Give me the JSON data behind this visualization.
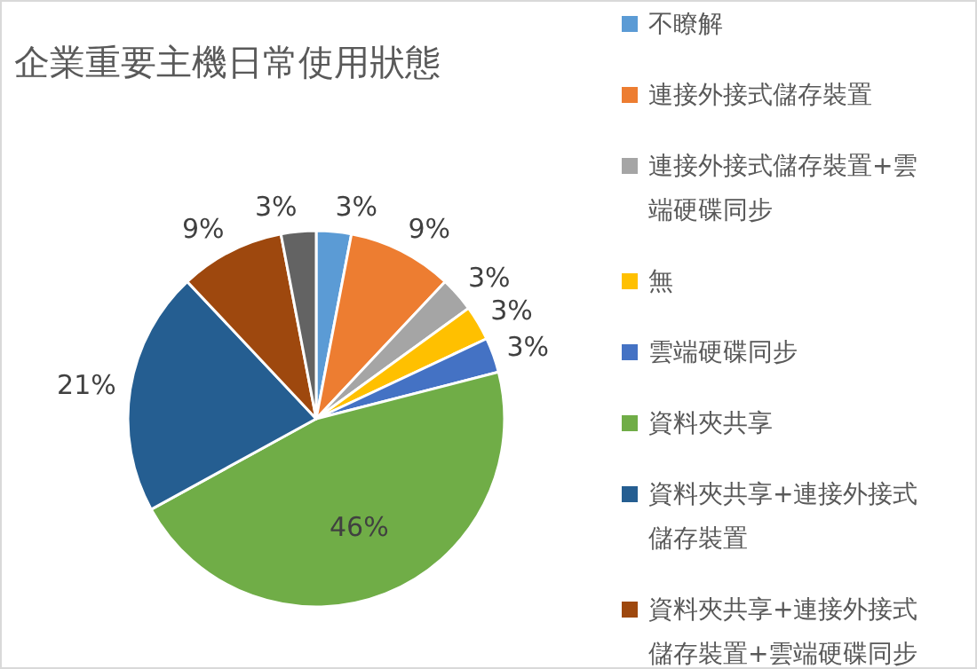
{
  "chart_data": {
    "type": "pie",
    "title": "企業重要主機日常使用狀態",
    "categories": [
      "不瞭解",
      "連接外接式儲存裝置",
      "連接外接式儲存裝置+雲端硬碟同步",
      "無",
      "雲端硬碟同步",
      "資料夾共享",
      "資料夾共享+連接外接式儲存裝置",
      "資料夾共享+連接外接式儲存裝置+雲端硬碟同步",
      null
    ],
    "values": [
      3,
      9,
      3,
      3,
      3,
      46,
      21,
      9,
      3
    ],
    "colors": [
      "#5b9bd5",
      "#ed7d31",
      "#a5a5a5",
      "#ffc000",
      "#4472c4",
      "#70ad47",
      "#255e91",
      "#9e480e",
      "#636363"
    ],
    "value_labels": [
      "3%",
      "9%",
      "3%",
      "3%",
      "3%",
      "46%",
      "21%",
      "9%",
      "3%"
    ],
    "legend": "right"
  }
}
